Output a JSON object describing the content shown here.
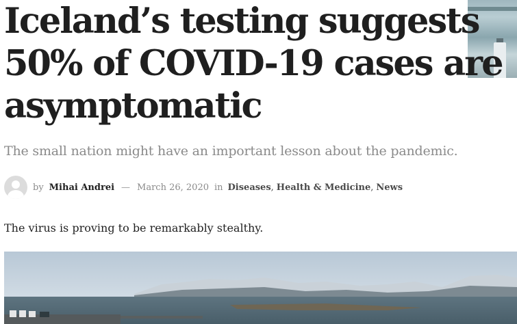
{
  "article": {
    "title": "Iceland’s testing suggests 50% of COVID-19 cases are asymptomatic",
    "subtitle": "The small nation might have an important lesson about the pandemic.",
    "meta": {
      "by_label": "by",
      "author": "Mihai Andrei",
      "dash": "—",
      "date": "March 26, 2020",
      "in_label": "in",
      "categories": [
        "Diseases",
        "Health & Medicine",
        "News"
      ],
      "category_separator": ","
    },
    "lead": "The virus is proving to be remarkably stealthy."
  },
  "icons": {
    "avatar": "user-avatar-icon"
  },
  "colors": {
    "title": "#1f1f1f",
    "subtitle": "#8a8a8a",
    "link": "#4a4a4a"
  }
}
